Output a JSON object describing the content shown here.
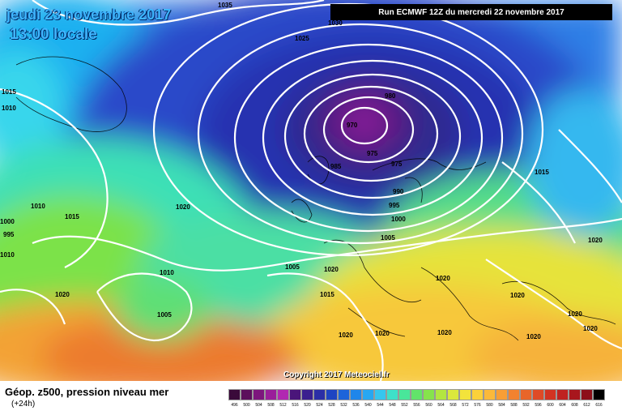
{
  "header": {
    "date": "jeudi 23 novembre 2017",
    "time": "13:00 locale",
    "run": "Run ECMWF 12Z du mercredi 22 novembre 2017"
  },
  "footer": {
    "copyright": "Copyright 2017 Meteociel.fr",
    "legend_title": "Géop. z500, pression niveau mer",
    "legend_sub": "(+24h)"
  },
  "map": {
    "isobar_labels": [
      "1035",
      "1030",
      "1025",
      "1015",
      "1010",
      "980",
      "970",
      "975",
      "985",
      "975",
      "1015",
      "990",
      "995",
      "1000",
      "1020",
      "1020",
      "1010",
      "1015",
      "1005",
      "1000",
      "995",
      "1010",
      "1005",
      "1005",
      "1010",
      "1020",
      "1020",
      "1015",
      "1020",
      "1020",
      "1020",
      "1020",
      "1020",
      "1020",
      "1020",
      "1020"
    ]
  },
  "legend": {
    "scale_values": [
      "496",
      "500",
      "504",
      "508",
      "512",
      "516",
      "520",
      "524",
      "528",
      "532",
      "536",
      "540",
      "544",
      "548",
      "552",
      "556",
      "560",
      "564",
      "568",
      "572",
      "576",
      "580",
      "584",
      "588",
      "592",
      "596",
      "600",
      "604",
      "608",
      "612",
      "616"
    ],
    "scale_colors": [
      "#3a0a3a",
      "#5c0f5c",
      "#7d167d",
      "#9a1e9a",
      "#b128b1",
      "#4a157a",
      "#3a1f8f",
      "#2b2ea6",
      "#1e44c2",
      "#1d64da",
      "#1f86ea",
      "#27a7f2",
      "#36c6ef",
      "#3ee0c9",
      "#49e69a",
      "#62e36a",
      "#86e34c",
      "#b3e640",
      "#dbe83c",
      "#f3e33b",
      "#fbd13a",
      "#fbb93a",
      "#f89e35",
      "#f2822f",
      "#e9652a",
      "#df4a26",
      "#d23322",
      "#bf2221",
      "#a8161d",
      "#8d0f19",
      "#000000"
    ]
  }
}
